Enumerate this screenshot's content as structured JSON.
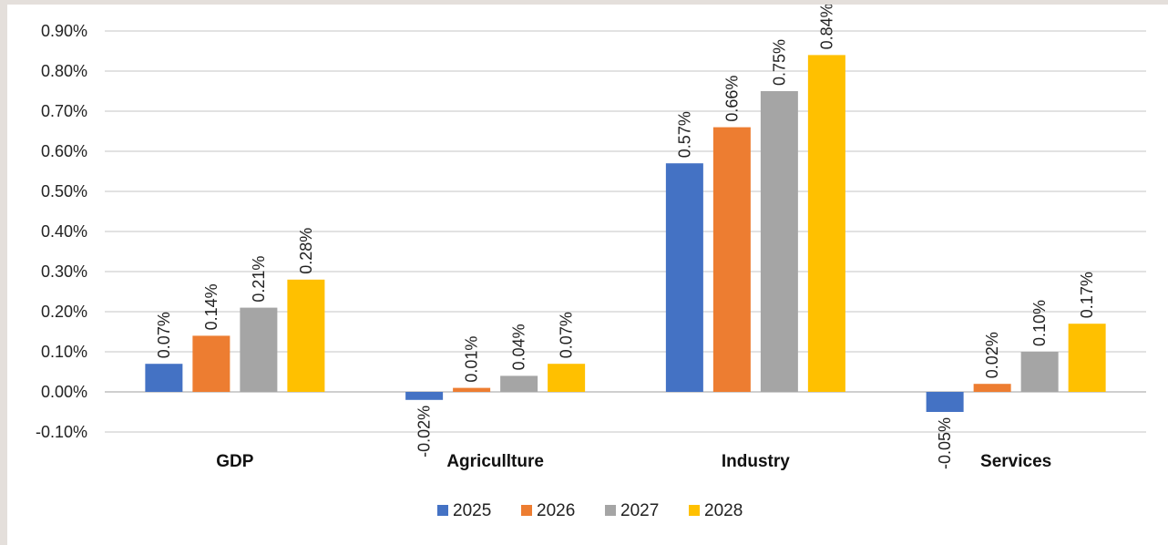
{
  "chart_data": {
    "type": "bar",
    "categories": [
      "GDP",
      "Agricullture",
      "Industry",
      "Services"
    ],
    "series": [
      {
        "name": "2025",
        "color": "#4472c4",
        "values": [
          0.07,
          -0.02,
          0.57,
          -0.05
        ],
        "labels": [
          "0.07%",
          "-0.02%",
          "0.57%",
          "-0.05%"
        ]
      },
      {
        "name": "2026",
        "color": "#ed7d31",
        "values": [
          0.14,
          0.01,
          0.66,
          0.02
        ],
        "labels": [
          "0.14%",
          "0.01%",
          "0.66%",
          "0.02%"
        ]
      },
      {
        "name": "2027",
        "color": "#a5a5a5",
        "values": [
          0.21,
          0.04,
          0.75,
          0.1
        ],
        "labels": [
          "0.21%",
          "0.04%",
          "0.75%",
          "0.10%"
        ]
      },
      {
        "name": "2028",
        "color": "#ffc000",
        "values": [
          0.28,
          0.07,
          0.84,
          0.17
        ],
        "labels": [
          "0.28%",
          "0.07%",
          "0.84%",
          "0.17%"
        ]
      }
    ],
    "ylim": [
      -0.1,
      0.9
    ],
    "yticks": [
      0.9,
      0.8,
      0.7,
      0.6,
      0.5,
      0.4,
      0.3,
      0.2,
      0.1,
      0.0,
      -0.1
    ],
    "ytick_labels": [
      "0.90%",
      "0.80%",
      "0.70%",
      "0.60%",
      "0.50%",
      "0.40%",
      "0.30%",
      "0.20%",
      "0.10%",
      "0.00%",
      "-0.10%"
    ],
    "grid": true,
    "legend": "bottom-center",
    "title": "",
    "xlabel": "",
    "ylabel": ""
  }
}
